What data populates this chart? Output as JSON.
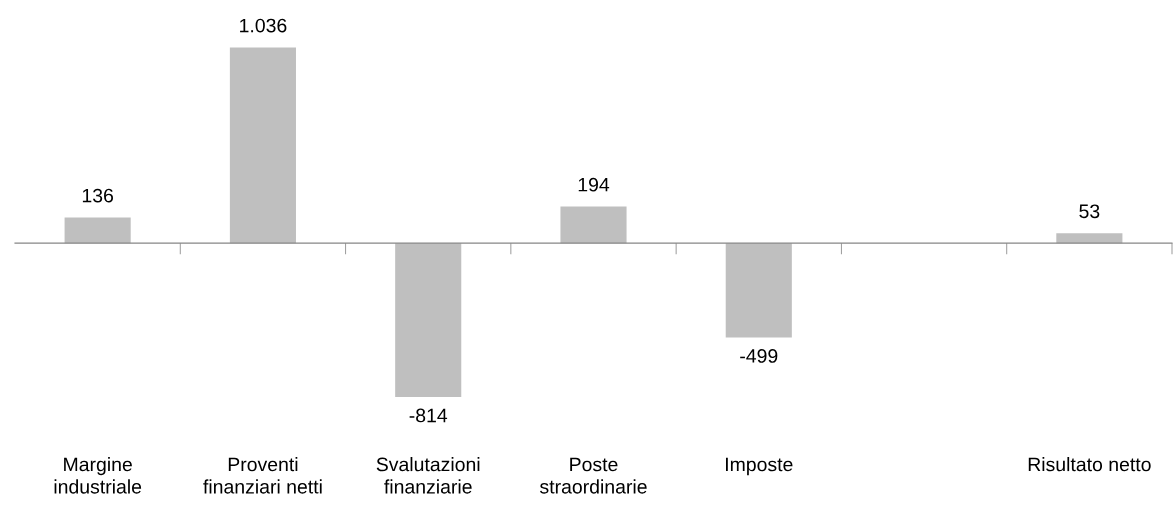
{
  "chart_data": {
    "type": "bar",
    "categories": [
      "Margine\nindustriale",
      "Proventi\nfinanziari netti",
      "Svalutazioni\nfinanziarie",
      "Poste\nstraordinarie",
      "Imposte",
      null,
      "Risultato netto"
    ],
    "values": [
      136,
      1036,
      -814,
      194,
      -499,
      null,
      53
    ],
    "value_labels": [
      "136",
      "1.036",
      "-814",
      "194",
      "-499",
      null,
      "53"
    ],
    "color": "#bfbfbf",
    "grid": false,
    "legend": false
  }
}
